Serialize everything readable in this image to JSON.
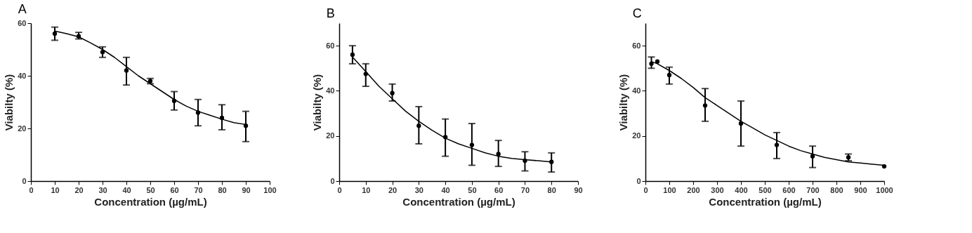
{
  "chart_data": [
    {
      "type": "scatter",
      "title": "A",
      "xlabel": "Concentration (µg/mL)",
      "ylabel": "Viabilty (%)",
      "xlim": [
        0,
        100
      ],
      "xticks": [
        0,
        10,
        20,
        30,
        40,
        50,
        60,
        70,
        80,
        90,
        100
      ],
      "ylim": [
        0,
        60
      ],
      "yticks": [
        0,
        20,
        40,
        60
      ],
      "grid": false,
      "series": [
        {
          "marker": "circle",
          "color": "#000000",
          "x": [
            10,
            20,
            30,
            40,
            50,
            60,
            70,
            80,
            90
          ],
          "values": [
            56,
            55,
            49,
            42,
            38,
            30.5,
            26,
            24,
            21
          ],
          "errors": [
            [
              53.5,
              58.5
            ],
            [
              54,
              56.5
            ],
            [
              47,
              51
            ],
            [
              36.5,
              47
            ],
            [
              37,
              39
            ],
            [
              27,
              34
            ],
            [
              21,
              31
            ],
            [
              19.5,
              29
            ],
            [
              15,
              26.5
            ]
          ]
        },
        {
          "type": "line",
          "marker": "none",
          "color": "#000000",
          "x": [
            10,
            15,
            20,
            25,
            30,
            35,
            40,
            45,
            50,
            55,
            60,
            65,
            70,
            75,
            80,
            85,
            90
          ],
          "values": [
            57,
            56,
            54.8,
            52.5,
            50,
            47,
            43.5,
            40,
            37,
            34,
            31,
            28.5,
            26.5,
            25,
            23.5,
            22.2,
            21.5
          ]
        }
      ]
    },
    {
      "type": "scatter",
      "title": "B",
      "xlabel": "Concentration (µg/mL)",
      "ylabel": "Viabilty (%)",
      "xlim": [
        0,
        90
      ],
      "xticks": [
        0,
        10,
        20,
        30,
        40,
        50,
        60,
        70,
        80,
        90
      ],
      "ylim": [
        0,
        70
      ],
      "yticks": [
        0,
        20,
        40,
        60
      ],
      "grid": false,
      "series": [
        {
          "marker": "circle",
          "color": "#000000",
          "x": [
            5,
            10,
            20,
            30,
            40,
            50,
            60,
            70,
            80
          ],
          "values": [
            56,
            47.5,
            39,
            24.5,
            19.5,
            16,
            12,
            9,
            8.5
          ],
          "errors": [
            [
              52,
              60
            ],
            [
              42,
              52
            ],
            [
              35.5,
              43
            ],
            [
              16.5,
              33
            ],
            [
              11,
              27.5
            ],
            [
              7,
              25.5
            ],
            [
              6.5,
              18
            ],
            [
              4.5,
              13
            ],
            [
              4,
              12.5
            ]
          ]
        },
        {
          "type": "line",
          "marker": "none",
          "color": "#000000",
          "x": [
            5,
            10,
            15,
            20,
            25,
            30,
            35,
            40,
            45,
            50,
            55,
            60,
            65,
            70,
            75,
            80
          ],
          "values": [
            55,
            48.5,
            42,
            36.5,
            31,
            26.5,
            22.5,
            19,
            16.5,
            14.5,
            12.5,
            11,
            10,
            9.5,
            9,
            8.5
          ]
        }
      ]
    },
    {
      "type": "scatter",
      "title": "C",
      "xlabel": "Concentration (µg/mL)",
      "ylabel": "Viabilty (%)",
      "xlim": [
        0,
        1000
      ],
      "xticks": [
        0,
        100,
        200,
        300,
        400,
        500,
        600,
        700,
        800,
        900,
        {
          "value": 1000,
          "label": "1000"
        }
      ],
      "ylim": [
        0,
        70
      ],
      "yticks": [
        0,
        20,
        40,
        60
      ],
      "grid": false,
      "series": [
        {
          "marker": "circle",
          "color": "#000000",
          "x": [
            25,
            50,
            100,
            250,
            400,
            550,
            700,
            850,
            1000
          ],
          "values": [
            52,
            53,
            47,
            33.5,
            25.5,
            16,
            11,
            10.5,
            6.5
          ],
          "errors": [
            [
              50,
              55
            ],
            null,
            [
              43,
              50.5
            ],
            [
              26.5,
              41
            ],
            [
              15.5,
              35.5
            ],
            [
              10,
              21.5
            ],
            [
              6,
              15.5
            ],
            [
              9,
              12
            ],
            null
          ]
        },
        {
          "type": "line",
          "marker": "none",
          "color": "#000000",
          "x": [
            25,
            50,
            100,
            150,
            200,
            250,
            300,
            350,
            400,
            450,
            500,
            550,
            600,
            650,
            700,
            750,
            800,
            850,
            900,
            950,
            1000
          ],
          "values": [
            53,
            52,
            49,
            45.5,
            41.5,
            37,
            33.5,
            30,
            26.5,
            23.5,
            20.5,
            18,
            15.5,
            13.5,
            12,
            10.5,
            9.5,
            8.5,
            8,
            7.5,
            7
          ]
        }
      ]
    }
  ]
}
